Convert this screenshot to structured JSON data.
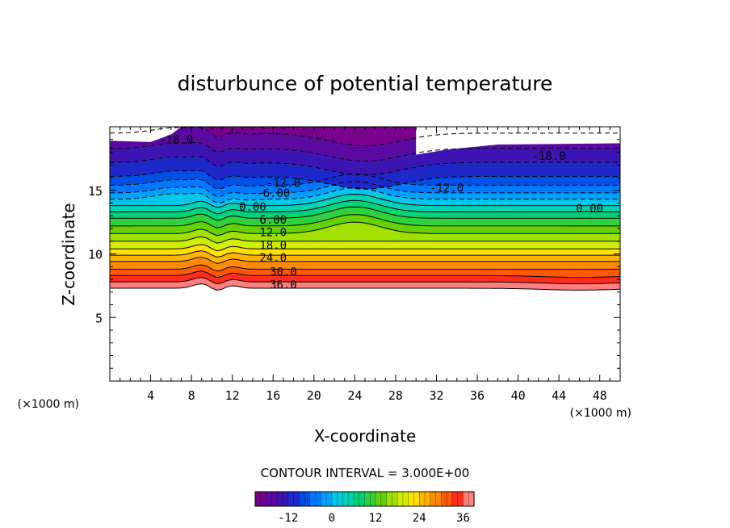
{
  "chart_data": {
    "type": "contour",
    "title": "disturbunce of potential temperature",
    "xlabel": "X-coordinate",
    "ylabel": "Z-coordinate",
    "x_unit": "(×1000 m)",
    "z_unit": "(×1000 m)",
    "xlim": [
      0,
      50
    ],
    "ylim": [
      0,
      20
    ],
    "x_ticks": [
      4,
      8,
      12,
      16,
      20,
      24,
      28,
      32,
      36,
      40,
      44,
      48
    ],
    "y_ticks": [
      5,
      10,
      15
    ],
    "contour_interval_text": "CONTOUR INTERVAL = 3.000E+00",
    "contour_labels": [
      {
        "text": "-18.0",
        "x": 6.5,
        "z": 19.0,
        "dashed": true
      },
      {
        "text": "-18.0",
        "x": 43.0,
        "z": 17.7,
        "dashed": true
      },
      {
        "text": "-12.0",
        "x": 17.0,
        "z": 15.6,
        "dashed": true
      },
      {
        "text": "-12.0",
        "x": 33.0,
        "z": 15.2,
        "dashed": true
      },
      {
        "text": "-6.00",
        "x": 16.0,
        "z": 14.8,
        "dashed": true
      },
      {
        "text": "0.00",
        "x": 14.0,
        "z": 13.7,
        "dashed": false
      },
      {
        "text": "0.00",
        "x": 47.0,
        "z": 13.6,
        "dashed": false
      },
      {
        "text": "6.00",
        "x": 16.0,
        "z": 12.7,
        "dashed": false
      },
      {
        "text": "12.0",
        "x": 16.0,
        "z": 11.7,
        "dashed": false
      },
      {
        "text": "18.0",
        "x": 16.0,
        "z": 10.7,
        "dashed": false
      },
      {
        "text": "24.0",
        "x": 16.0,
        "z": 9.7,
        "dashed": false
      },
      {
        "text": "30.0",
        "x": 17.0,
        "z": 8.6,
        "dashed": false
      },
      {
        "text": "36.0",
        "x": 17.0,
        "z": 7.6,
        "dashed": false
      }
    ],
    "levels": [
      {
        "value": 36,
        "base": 7.3,
        "color": "#ff7f7f"
      },
      {
        "value": 33,
        "base": 7.8,
        "color": "#ff2d1e"
      },
      {
        "value": 30,
        "base": 8.3,
        "color": "#ff5a00"
      },
      {
        "value": 27,
        "base": 8.8,
        "color": "#ff8c00"
      },
      {
        "value": 24,
        "base": 9.4,
        "color": "#ffb400"
      },
      {
        "value": 21,
        "base": 9.9,
        "color": "#ffe100"
      },
      {
        "value": 18,
        "base": 10.4,
        "color": "#d2ee00"
      },
      {
        "value": 15,
        "base": 11.0,
        "color": "#a0e100"
      },
      {
        "value": 12,
        "base": 11.6,
        "color": "#64d200"
      },
      {
        "value": 9,
        "base": 12.2,
        "color": "#2dd23c"
      },
      {
        "value": 6,
        "base": 12.8,
        "color": "#00d278"
      },
      {
        "value": 3,
        "base": 13.3,
        "color": "#00d2b4"
      },
      {
        "value": 0,
        "base": 13.8,
        "color": "#00c8e6"
      },
      {
        "value": -3,
        "base": 14.3,
        "color": "#00a0ff"
      },
      {
        "value": -6,
        "base": 14.8,
        "color": "#0078ff"
      },
      {
        "value": -9,
        "base": 15.4,
        "color": "#0050e6"
      },
      {
        "value": -12,
        "base": 16.1,
        "color": "#1e28c8"
      },
      {
        "value": -15,
        "base": 17.2,
        "color": "#3c14b4"
      },
      {
        "value": -18,
        "base": 18.3,
        "color": "#5a0aa0"
      },
      {
        "value": -21,
        "base": 19.5,
        "color": "#78008c"
      }
    ],
    "colorbar": {
      "min": -21,
      "max": 39,
      "tick_values": [
        -12,
        0,
        12,
        24,
        36
      ],
      "tick_labels": [
        "-12",
        "0",
        "12",
        "24",
        "36"
      ]
    },
    "background": "#ffffff"
  }
}
